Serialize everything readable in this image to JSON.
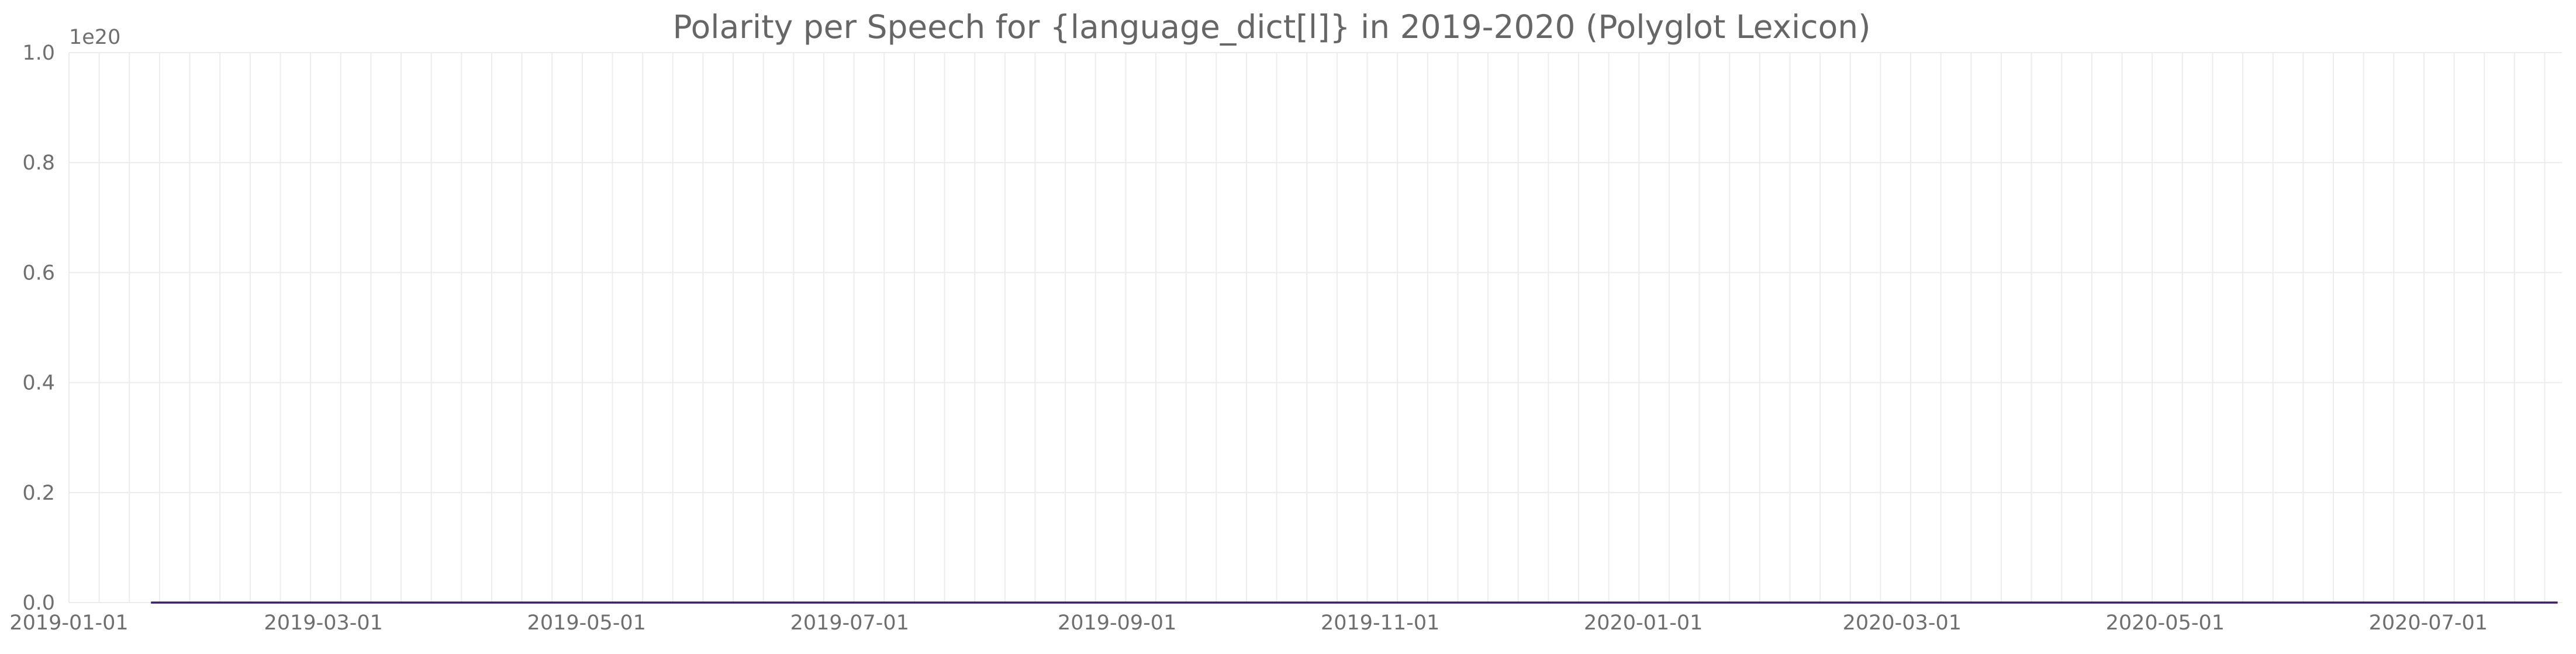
{
  "chart_data": {
    "type": "line",
    "title": "Polarity per Speech for {language_dict[l]} in 2019-2020 (Polyglot Lexicon)",
    "xlabel": "",
    "ylabel": "",
    "y_offset_label": "1e20",
    "ylim": [
      0.0,
      1.0
    ],
    "y_ticks": [
      {
        "value": 0.0,
        "label": "0.0"
      },
      {
        "value": 0.2,
        "label": "0.2"
      },
      {
        "value": 0.4,
        "label": "0.4"
      },
      {
        "value": 0.6,
        "label": "0.6"
      },
      {
        "value": 0.8,
        "label": "0.8"
      },
      {
        "value": 1.0,
        "label": "1.0"
      }
    ],
    "xlim": [
      "2019-01-01",
      "2020-08-01"
    ],
    "x_ticks": [
      {
        "value": "2019-01-01",
        "label": "2019-01-01"
      },
      {
        "value": "2019-03-01",
        "label": "2019-03-01"
      },
      {
        "value": "2019-05-01",
        "label": "2019-05-01"
      },
      {
        "value": "2019-07-01",
        "label": "2019-07-01"
      },
      {
        "value": "2019-09-01",
        "label": "2019-09-01"
      },
      {
        "value": "2019-11-01",
        "label": "2019-11-01"
      },
      {
        "value": "2020-01-01",
        "label": "2020-01-01"
      },
      {
        "value": "2020-03-01",
        "label": "2020-03-01"
      },
      {
        "value": "2020-05-01",
        "label": "2020-05-01"
      },
      {
        "value": "2020-07-01",
        "label": "2020-07-01"
      }
    ],
    "grid": true,
    "series": [
      {
        "color": "#3b1f6e",
        "x": [
          "2019-01-20",
          "2020-07-31"
        ],
        "y": [
          0.0,
          0.0
        ]
      }
    ]
  }
}
